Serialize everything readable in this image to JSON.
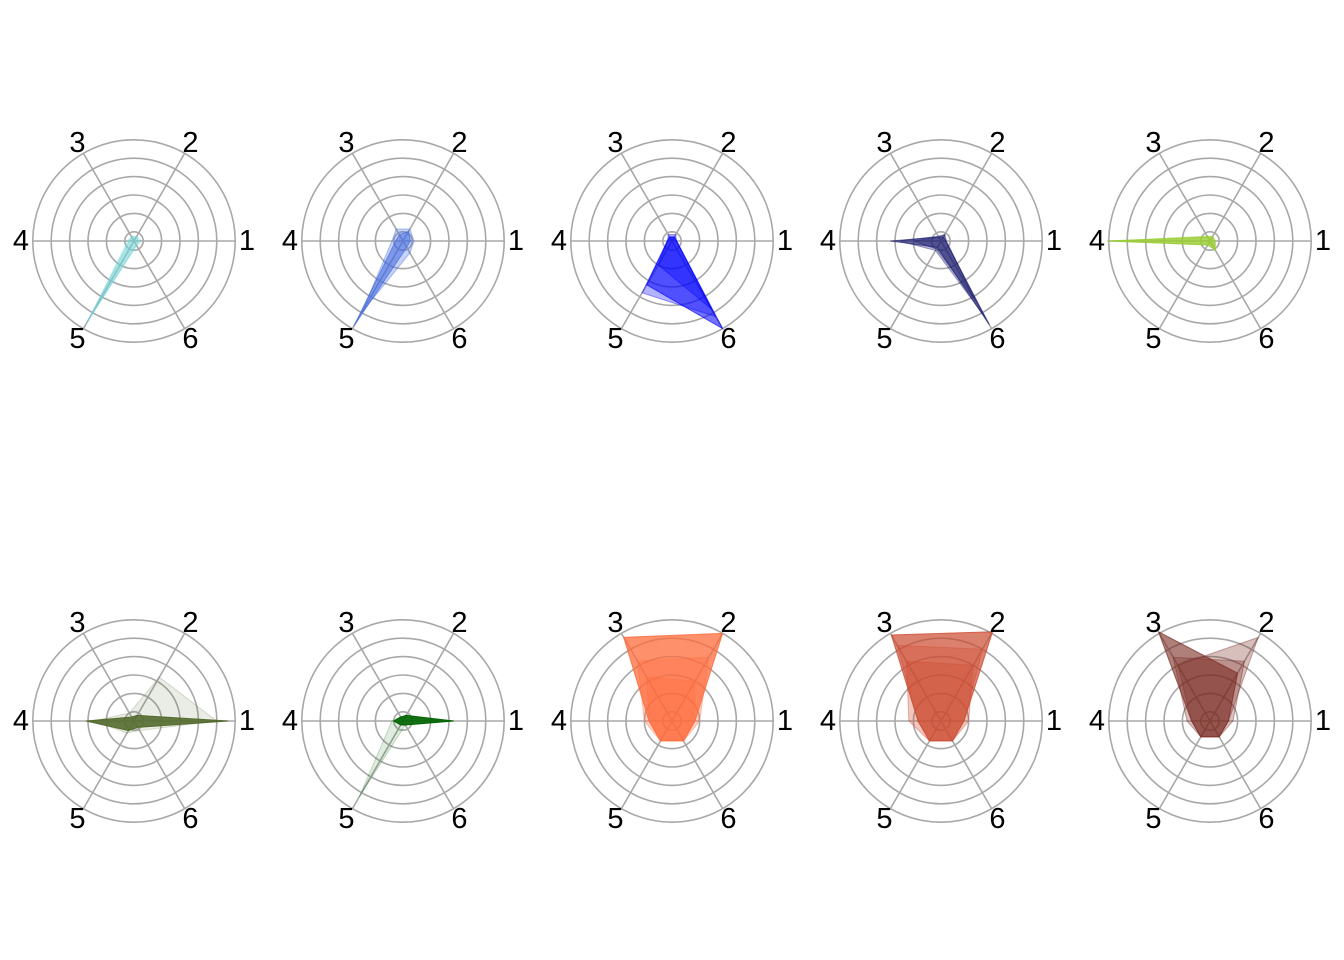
{
  "chart_data": {
    "type": "radar",
    "layout": "2 rows x 5 columns of small-multiple radar plots",
    "axes": [
      "1",
      "2",
      "3",
      "4",
      "5",
      "6"
    ],
    "axis_angles_deg": [
      0,
      60,
      120,
      180,
      240,
      300
    ],
    "rings": [
      0.1,
      0.3,
      0.5,
      0.7,
      0.9,
      1.1
    ],
    "grid_color": "#a8a8a8",
    "panels": [
      {
        "color": "#6fd3d8",
        "profiles": [
          {
            "values": [
              0.05,
              0.05,
              0.05,
              0.05,
              1.05,
              0.05
            ],
            "opacity": 0.45
          },
          {
            "values": [
              0.08,
              0.06,
              0.06,
              0.07,
              0.95,
              0.06
            ],
            "opacity": 0.25
          }
        ]
      },
      {
        "color": "#4169e1",
        "profiles": [
          {
            "values": [
              0.08,
              0.12,
              0.08,
              0.08,
              1.07,
              0.08
            ],
            "opacity": 0.55
          },
          {
            "values": [
              0.12,
              0.15,
              0.15,
              0.12,
              0.9,
              0.15
            ],
            "opacity": 0.3
          }
        ]
      },
      {
        "color": "#0000ff",
        "profiles": [
          {
            "values": [
              0.05,
              0.05,
              0.05,
              0.05,
              0.55,
              1.1
            ],
            "opacity": 0.55
          },
          {
            "values": [
              0.05,
              0.08,
              0.08,
              0.05,
              0.65,
              0.95
            ],
            "opacity": 0.3
          },
          {
            "values": [
              0.05,
              0.05,
              0.05,
              0.05,
              0.3,
              0.85
            ],
            "opacity": 0.35
          }
        ]
      },
      {
        "color": "#191970",
        "profiles": [
          {
            "values": [
              0.05,
              0.05,
              0.05,
              0.55,
              0.08,
              1.05
            ],
            "opacity": 0.5
          },
          {
            "values": [
              0.05,
              0.08,
              0.06,
              0.45,
              0.12,
              0.95
            ],
            "opacity": 0.3
          },
          {
            "values": [
              0.06,
              0.08,
              0.05,
              0.3,
              0.1,
              0.75
            ],
            "opacity": 0.3
          }
        ]
      },
      {
        "color": "#9acd32",
        "profiles": [
          {
            "values": [
              0.05,
              0.05,
              0.05,
              1.12,
              0.05,
              0.1
            ],
            "opacity": 0.7
          },
          {
            "values": [
              0.06,
              0.06,
              0.06,
              1.05,
              0.05,
              0.12
            ],
            "opacity": 0.4
          }
        ]
      },
      {
        "color": "#556b2f",
        "profiles": [
          {
            "values": [
              1.02,
              0.07,
              0.05,
              0.52,
              0.12,
              0.08
            ],
            "opacity": 0.9
          },
          {
            "values": [
              0.9,
              0.55,
              0.1,
              0.45,
              0.15,
              0.12
            ],
            "opacity": 0.12
          }
        ]
      },
      {
        "color": "#006400",
        "profiles": [
          {
            "values": [
              0.55,
              0.07,
              0.05,
              0.1,
              0.05,
              0.05
            ],
            "opacity": 0.9
          },
          {
            "values": [
              0.45,
              0.05,
              0.05,
              0.12,
              0.95,
              0.05
            ],
            "opacity": 0.12
          }
        ]
      },
      {
        "color": "#ff6b3b",
        "profiles": [
          {
            "values": [
              0.25,
              1.1,
              1.05,
              0.25,
              0.25,
              0.25
            ],
            "opacity": 0.75
          },
          {
            "values": [
              0.25,
              0.5,
              0.55,
              0.25,
              0.25,
              0.25
            ],
            "opacity": 0.3
          },
          {
            "values": [
              0.3,
              0.8,
              0.75,
              0.3,
              0.25,
              0.25
            ],
            "opacity": 0.3
          }
        ]
      },
      {
        "color": "#cd4a30",
        "profiles": [
          {
            "values": [
              0.25,
              1.12,
              1.08,
              0.25,
              0.25,
              0.25
            ],
            "opacity": 0.7
          },
          {
            "values": [
              0.3,
              0.7,
              0.75,
              0.35,
              0.25,
              0.25
            ],
            "opacity": 0.3
          },
          {
            "values": [
              0.25,
              0.9,
              0.95,
              0.25,
              0.25,
              0.25
            ],
            "opacity": 0.3
          }
        ]
      },
      {
        "color": "#7a2a22",
        "profiles": [
          {
            "values": [
              0.2,
              0.6,
              1.12,
              0.2,
              0.2,
              0.2
            ],
            "opacity": 0.6
          },
          {
            "values": [
              0.2,
              1.05,
              0.7,
              0.2,
              0.2,
              0.2
            ],
            "opacity": 0.3
          },
          {
            "values": [
              0.25,
              0.75,
              0.8,
              0.25,
              0.2,
              0.2
            ],
            "opacity": 0.3
          }
        ]
      }
    ]
  }
}
